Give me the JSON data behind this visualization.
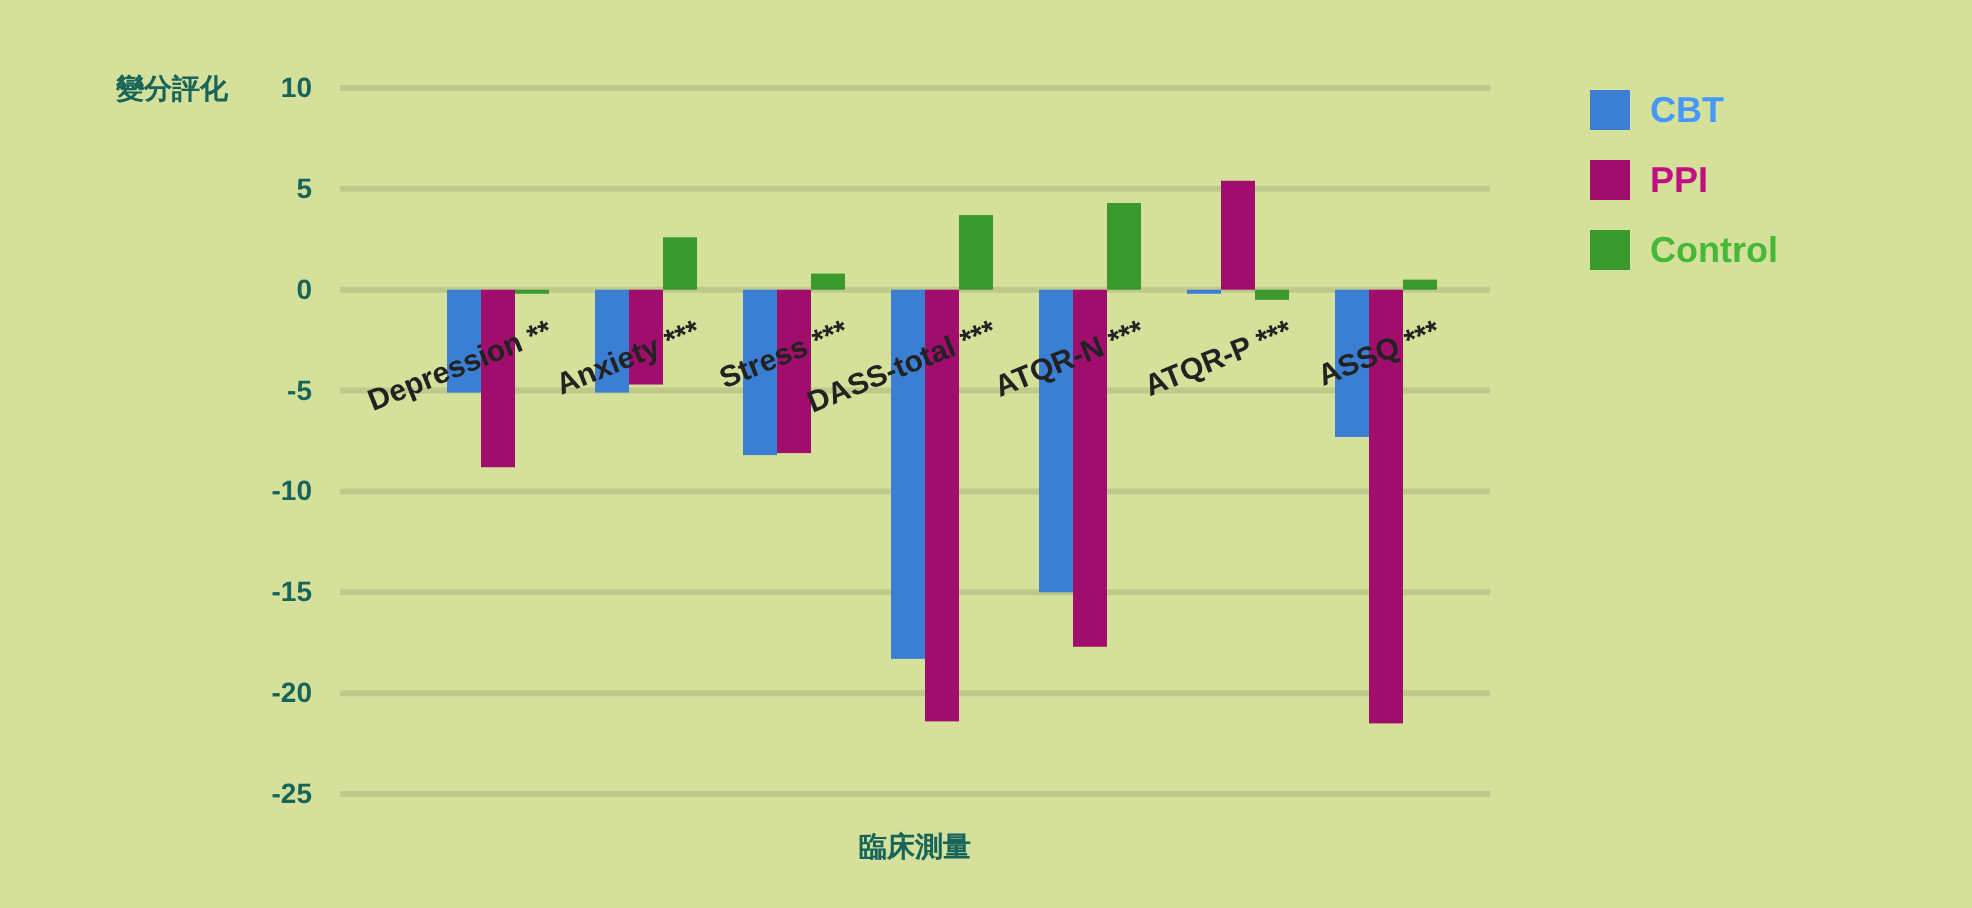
{
  "chart_data": {
    "type": "bar",
    "ylabel": "變分評化",
    "xlabel": "臨床測量",
    "categories": [
      "Depression **",
      "Anxiety ***",
      "Stress ***",
      "DASS-total ***",
      "ATQR-N ***",
      "ATQR-P ***",
      "ASSQ ***"
    ],
    "series": [
      {
        "name": "CBT",
        "color": "#3b7fd4",
        "values": [
          -5.1,
          -5.1,
          -8.2,
          -18.3,
          -15.0,
          -0.2,
          -7.3
        ]
      },
      {
        "name": "PPI",
        "color": "#a00d6c",
        "values": [
          -8.8,
          -4.7,
          -8.1,
          -21.4,
          -17.7,
          5.4,
          -21.5
        ]
      },
      {
        "name": "Control",
        "color": "#3a9a2e",
        "values": [
          -0.2,
          2.6,
          0.8,
          3.7,
          4.3,
          -0.5,
          0.5
        ]
      }
    ],
    "ylim": [
      -25,
      10
    ],
    "yticks": [
      -25,
      -20,
      -15,
      -10,
      -5,
      0,
      5,
      10
    ],
    "grid": "y",
    "legend": "top right"
  }
}
